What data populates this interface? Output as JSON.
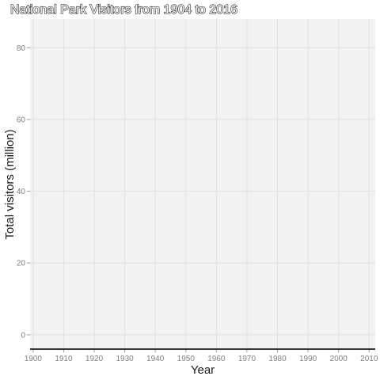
{
  "chart_data": {
    "type": "line",
    "title": "National Park Visitors from 1904 to 2016",
    "xlabel": "Year",
    "ylabel": "Total visitors (million)",
    "xlim": [
      1899,
      2012
    ],
    "ylim": [
      -4,
      88
    ],
    "x_ticks": [
      1900,
      1910,
      1920,
      1930,
      1940,
      1950,
      1960,
      1970,
      1980,
      1990,
      2000,
      2010
    ],
    "y_ticks": [
      0,
      20,
      40,
      60,
      80
    ],
    "grid": true,
    "panel_background": "#f2f2f2",
    "grid_color": "#e0e0e0",
    "x": [],
    "series": []
  }
}
